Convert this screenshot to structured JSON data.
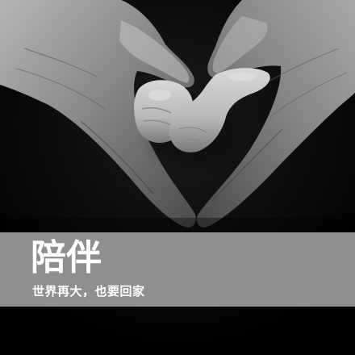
{
  "image": {
    "subject": "adult-hands-forming-heart-around-baby-hands",
    "style": "black-and-white"
  },
  "caption": {
    "title": "陪伴",
    "subtitle": "世界再大，也要回家"
  },
  "colors": {
    "background": "#000000",
    "band": "#8f8f8f",
    "text": "#ffffff",
    "skin_light": "#c9c9c9",
    "skin_mid": "#9a9a9a",
    "skin_dark": "#5a5a5a"
  }
}
